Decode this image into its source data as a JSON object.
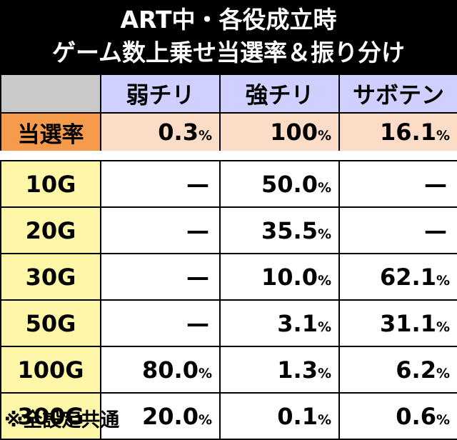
{
  "title": {
    "line1": "ART中・各役成立時",
    "line2": "ゲーム数上乗せ当選率＆振り分け"
  },
  "columns": [
    "弱チリ",
    "強チリ",
    "サボテン"
  ],
  "rate": {
    "label": "当選率",
    "values": [
      {
        "num": "0.3",
        "unit": "%"
      },
      {
        "num": "100",
        "unit": "%"
      },
      {
        "num": "16.1",
        "unit": "%"
      }
    ]
  },
  "rows": [
    {
      "label": "10G",
      "cells": [
        {
          "num": "—",
          "unit": ""
        },
        {
          "num": "50.0",
          "unit": "%"
        },
        {
          "num": "—",
          "unit": ""
        }
      ]
    },
    {
      "label": "20G",
      "cells": [
        {
          "num": "—",
          "unit": ""
        },
        {
          "num": "35.5",
          "unit": "%"
        },
        {
          "num": "—",
          "unit": ""
        }
      ]
    },
    {
      "label": "30G",
      "cells": [
        {
          "num": "—",
          "unit": ""
        },
        {
          "num": "10.0",
          "unit": "%"
        },
        {
          "num": "62.1",
          "unit": "%"
        }
      ]
    },
    {
      "label": "50G",
      "cells": [
        {
          "num": "—",
          "unit": ""
        },
        {
          "num": "3.1",
          "unit": "%"
        },
        {
          "num": "31.1",
          "unit": "%"
        }
      ]
    },
    {
      "label": "100G",
      "cells": [
        {
          "num": "80.0",
          "unit": "%"
        },
        {
          "num": "1.3",
          "unit": "%"
        },
        {
          "num": "6.2",
          "unit": "%"
        }
      ]
    },
    {
      "label": "300G",
      "cells": [
        {
          "num": "20.0",
          "unit": "%"
        },
        {
          "num": "0.1",
          "unit": "%"
        },
        {
          "num": "0.6",
          "unit": "%"
        }
      ]
    }
  ],
  "footnote": "※全設定共通"
}
